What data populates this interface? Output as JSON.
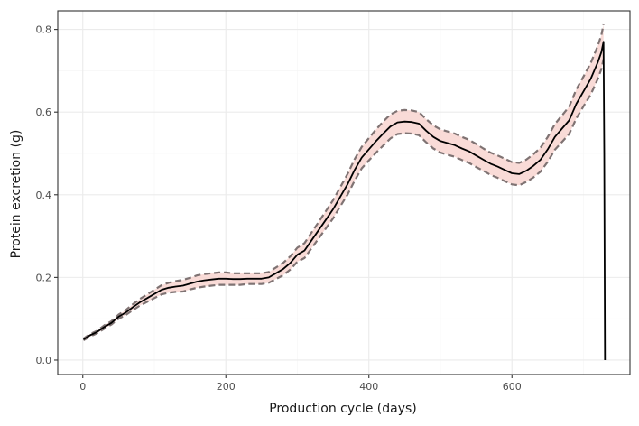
{
  "chart_data": {
    "type": "line",
    "title": "",
    "xlabel": "Production cycle (days)",
    "ylabel": "Protein excretion (g)",
    "xlim": [
      -35,
      765
    ],
    "ylim": [
      -0.035,
      0.845
    ],
    "xticks": [
      0,
      200,
      400,
      600
    ],
    "xtick_labels": [
      "0",
      "200",
      "400",
      "600"
    ],
    "yticks": [
      0.0,
      0.2,
      0.4,
      0.6,
      0.8
    ],
    "ytick_labels": [
      "0.0",
      "0.2",
      "0.4",
      "0.6",
      "0.8"
    ],
    "grid": true,
    "legend": "none",
    "colors": {
      "line": "#000000",
      "band_fill": "#f8d5d0",
      "band_edge": "#7f7373",
      "grid_major": "#ebebeb",
      "grid_minor": "#f5f5f5",
      "panel_border": "#333333"
    },
    "series": [
      {
        "role": "mean",
        "x": [
          1,
          10,
          20,
          30,
          40,
          50,
          60,
          70,
          80,
          90,
          100,
          110,
          120,
          130,
          140,
          150,
          160,
          170,
          180,
          190,
          200,
          210,
          220,
          230,
          240,
          250,
          260,
          270,
          280,
          290,
          300,
          310,
          320,
          330,
          340,
          350,
          360,
          370,
          380,
          390,
          400,
          410,
          420,
          430,
          440,
          450,
          460,
          470,
          480,
          490,
          500,
          510,
          520,
          530,
          540,
          550,
          560,
          570,
          580,
          590,
          600,
          610,
          620,
          630,
          640,
          650,
          660,
          670,
          680,
          690,
          700,
          710,
          720,
          725,
          728,
          729,
          730
        ],
        "y": [
          0.05,
          0.06,
          0.068,
          0.08,
          0.09,
          0.105,
          0.115,
          0.128,
          0.14,
          0.15,
          0.16,
          0.17,
          0.175,
          0.178,
          0.18,
          0.185,
          0.19,
          0.193,
          0.195,
          0.197,
          0.197,
          0.196,
          0.196,
          0.197,
          0.197,
          0.197,
          0.2,
          0.21,
          0.22,
          0.235,
          0.255,
          0.265,
          0.29,
          0.315,
          0.34,
          0.365,
          0.395,
          0.425,
          0.46,
          0.49,
          0.51,
          0.53,
          0.548,
          0.565,
          0.575,
          0.577,
          0.576,
          0.572,
          0.555,
          0.54,
          0.53,
          0.525,
          0.52,
          0.512,
          0.505,
          0.495,
          0.485,
          0.475,
          0.468,
          0.46,
          0.452,
          0.45,
          0.458,
          0.47,
          0.485,
          0.51,
          0.54,
          0.56,
          0.58,
          0.62,
          0.65,
          0.68,
          0.72,
          0.745,
          0.77,
          0.5,
          0.0
        ]
      },
      {
        "role": "upper",
        "x": [
          1,
          10,
          20,
          30,
          40,
          50,
          60,
          70,
          80,
          90,
          100,
          110,
          120,
          130,
          140,
          150,
          160,
          170,
          180,
          190,
          200,
          210,
          220,
          230,
          240,
          250,
          260,
          270,
          280,
          290,
          300,
          310,
          320,
          330,
          340,
          350,
          360,
          370,
          380,
          390,
          400,
          410,
          420,
          430,
          440,
          450,
          460,
          470,
          480,
          490,
          500,
          510,
          520,
          530,
          540,
          550,
          560,
          570,
          580,
          590,
          600,
          610,
          620,
          630,
          640,
          650,
          660,
          670,
          680,
          690,
          700,
          710,
          720,
          725,
          728
        ],
        "y": [
          0.052,
          0.063,
          0.071,
          0.084,
          0.094,
          0.11,
          0.121,
          0.135,
          0.148,
          0.159,
          0.17,
          0.181,
          0.187,
          0.191,
          0.194,
          0.199,
          0.205,
          0.208,
          0.21,
          0.212,
          0.212,
          0.21,
          0.21,
          0.21,
          0.21,
          0.21,
          0.213,
          0.224,
          0.235,
          0.251,
          0.272,
          0.283,
          0.309,
          0.335,
          0.361,
          0.387,
          0.418,
          0.45,
          0.486,
          0.516,
          0.537,
          0.558,
          0.577,
          0.594,
          0.603,
          0.605,
          0.604,
          0.6,
          0.583,
          0.568,
          0.558,
          0.553,
          0.548,
          0.54,
          0.533,
          0.523,
          0.512,
          0.502,
          0.495,
          0.487,
          0.479,
          0.477,
          0.485,
          0.498,
          0.514,
          0.54,
          0.571,
          0.592,
          0.613,
          0.655,
          0.686,
          0.718,
          0.76,
          0.786,
          0.812
        ]
      },
      {
        "role": "lower",
        "x": [
          1,
          10,
          20,
          30,
          40,
          50,
          60,
          70,
          80,
          90,
          100,
          110,
          120,
          130,
          140,
          150,
          160,
          170,
          180,
          190,
          200,
          210,
          220,
          230,
          240,
          250,
          260,
          270,
          280,
          290,
          300,
          310,
          320,
          330,
          340,
          350,
          360,
          370,
          380,
          390,
          400,
          410,
          420,
          430,
          440,
          450,
          460,
          470,
          480,
          490,
          500,
          510,
          520,
          530,
          540,
          550,
          560,
          570,
          580,
          590,
          600,
          610,
          620,
          630,
          640,
          650,
          660,
          670,
          680,
          690,
          700,
          710,
          720,
          725,
          728
        ],
        "y": [
          0.048,
          0.057,
          0.065,
          0.076,
          0.086,
          0.1,
          0.109,
          0.121,
          0.132,
          0.141,
          0.15,
          0.159,
          0.163,
          0.165,
          0.166,
          0.171,
          0.175,
          0.178,
          0.18,
          0.182,
          0.182,
          0.182,
          0.182,
          0.184,
          0.184,
          0.184,
          0.187,
          0.196,
          0.205,
          0.219,
          0.238,
          0.247,
          0.271,
          0.295,
          0.319,
          0.343,
          0.372,
          0.4,
          0.434,
          0.464,
          0.483,
          0.502,
          0.519,
          0.536,
          0.547,
          0.549,
          0.548,
          0.544,
          0.527,
          0.512,
          0.502,
          0.497,
          0.492,
          0.484,
          0.477,
          0.467,
          0.458,
          0.448,
          0.441,
          0.433,
          0.425,
          0.423,
          0.431,
          0.442,
          0.456,
          0.48,
          0.509,
          0.528,
          0.547,
          0.585,
          0.614,
          0.642,
          0.68,
          0.704,
          0.728
        ]
      }
    ]
  }
}
